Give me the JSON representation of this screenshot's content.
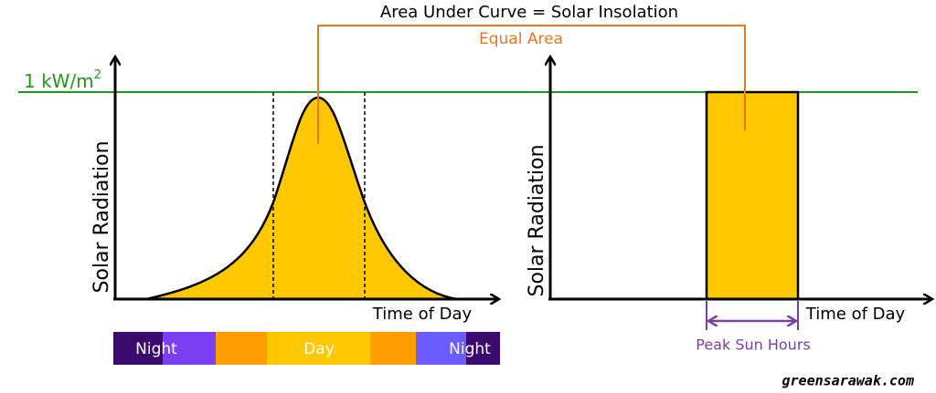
{
  "title": "Area Under Curve = Solar Insolation",
  "annotation": "Equal Area",
  "reference_line": {
    "label": "1 kW/m",
    "superscript": "2"
  },
  "left_panel": {
    "y_label": "Solar Radiation",
    "x_label": "Time of Day",
    "timeline": [
      "Night",
      "Day",
      "Night"
    ]
  },
  "right_panel": {
    "y_label": "Solar Radiation",
    "x_label": "Time of Day",
    "bracket_label": "Peak Sun Hours"
  },
  "watermark": "greensarawak.com"
}
